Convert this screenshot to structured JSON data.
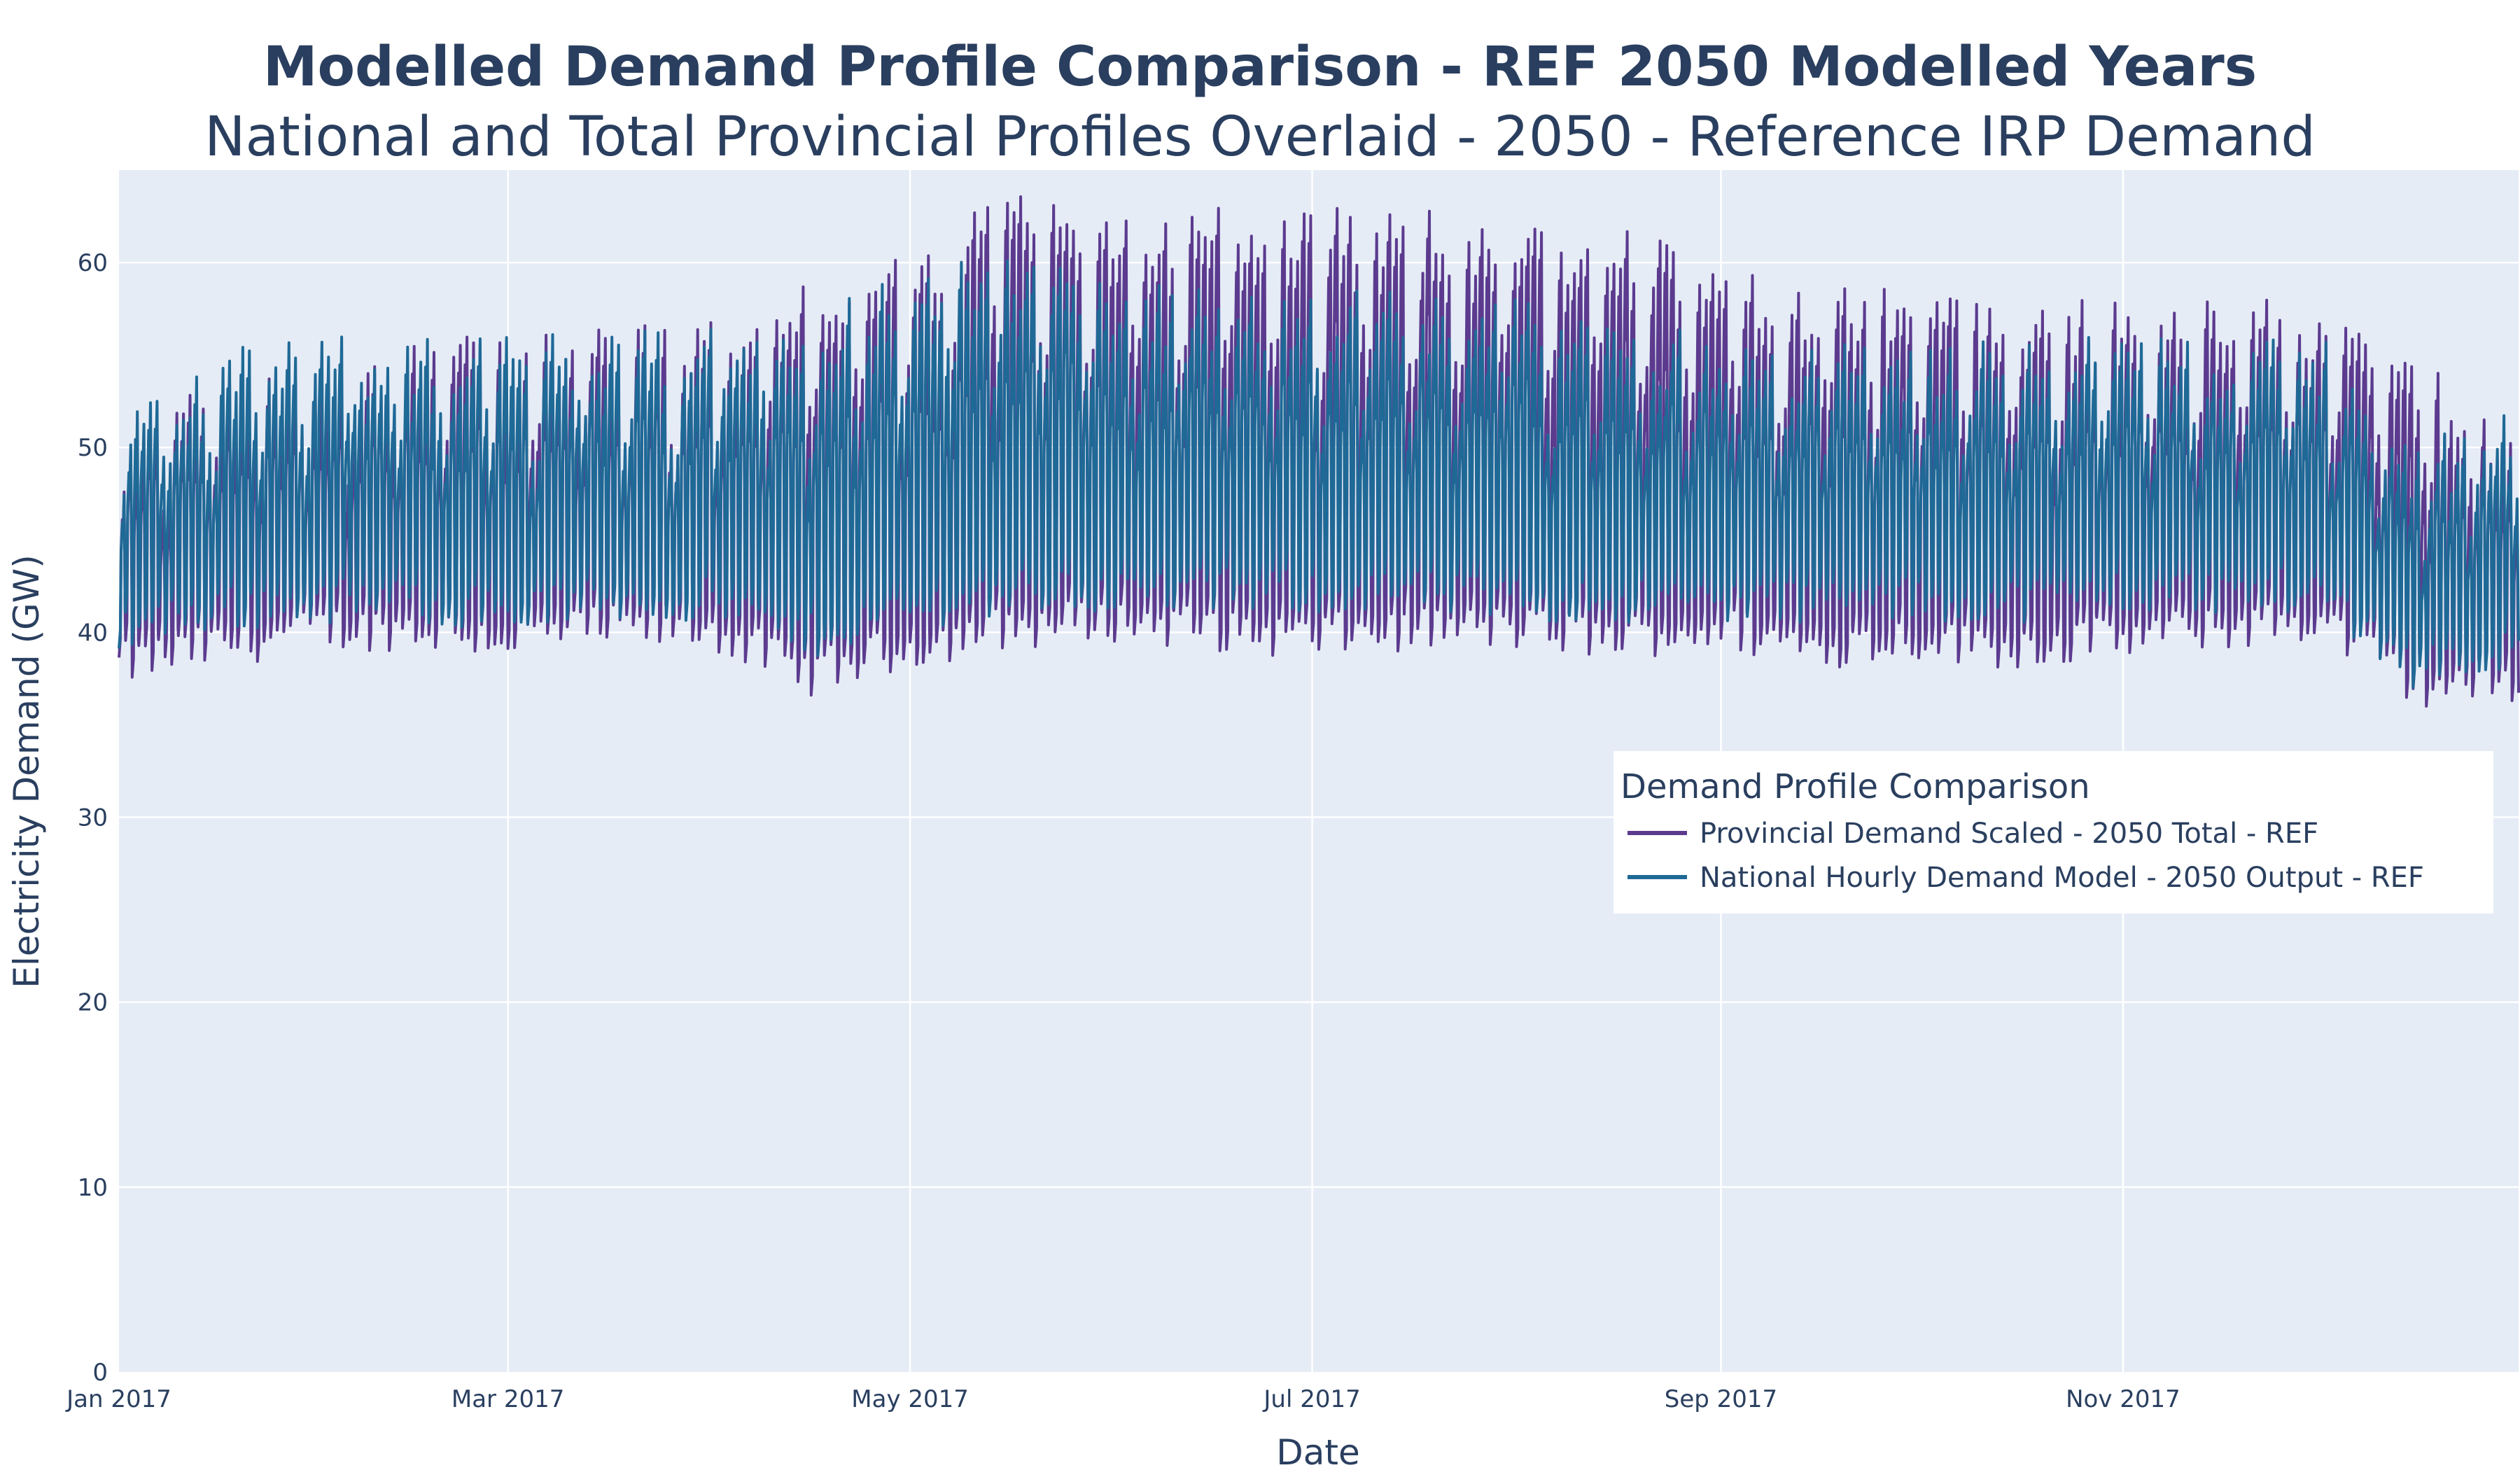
{
  "chart_data": {
    "type": "line",
    "title": "Modelled Demand Profile Comparison - REF 2050 Modelled Years",
    "subtitle": "National and Total Provincial Profiles Overlaid - 2050 - Reference IRP Demand",
    "xlabel": "Date",
    "ylabel": "Electricity Demand (GW)",
    "xlim": [
      "2017-01-01",
      "2017-12-31"
    ],
    "ylim": [
      0,
      65
    ],
    "x_ticks": [
      {
        "label": "Jan 2017",
        "value": "2017-01-01"
      },
      {
        "label": "Mar 2017",
        "value": "2017-03-01"
      },
      {
        "label": "May 2017",
        "value": "2017-05-01"
      },
      {
        "label": "Jul 2017",
        "value": "2017-07-01"
      },
      {
        "label": "Sep 2017",
        "value": "2017-09-01"
      },
      {
        "label": "Nov 2017",
        "value": "2017-11-01"
      }
    ],
    "y_ticks": [
      0,
      10,
      20,
      30,
      40,
      50,
      60
    ],
    "grid": true,
    "plot_bgcolor": "#e5ecf6",
    "legend": {
      "title": "Demand Profile Comparison",
      "position": "right-middle"
    },
    "series": [
      {
        "name": "Provincial Demand Scaled - 2050 Total - REF",
        "color": "#5c3b8f",
        "daily_min": {
          "x": [
            "2017-01-01",
            "2017-01-15",
            "2017-02-01",
            "2017-02-15",
            "2017-03-01",
            "2017-03-15",
            "2017-04-01",
            "2017-04-15",
            "2017-05-01",
            "2017-05-15",
            "2017-06-01",
            "2017-06-15",
            "2017-07-01",
            "2017-07-15",
            "2017-08-01",
            "2017-08-15",
            "2017-09-01",
            "2017-09-15",
            "2017-10-01",
            "2017-10-15",
            "2017-11-01",
            "2017-11-15",
            "2017-12-01",
            "2017-12-15",
            "2017-12-31"
          ],
          "y": [
            37,
            38,
            39,
            39,
            38.5,
            39,
            39,
            36.5,
            38,
            39,
            39.5,
            39,
            38.5,
            39,
            39,
            38.5,
            39,
            38,
            38.5,
            38,
            38.5,
            39,
            39.5,
            36,
            36
          ]
        },
        "daily_max": {
          "x": [
            "2017-01-01",
            "2017-01-15",
            "2017-02-01",
            "2017-02-15",
            "2017-03-01",
            "2017-03-15",
            "2017-04-01",
            "2017-04-15",
            "2017-05-01",
            "2017-05-15",
            "2017-06-01",
            "2017-06-15",
            "2017-07-01",
            "2017-07-15",
            "2017-08-01",
            "2017-08-15",
            "2017-09-01",
            "2017-09-15",
            "2017-10-01",
            "2017-10-15",
            "2017-11-01",
            "2017-11-15",
            "2017-12-01",
            "2017-12-15",
            "2017-12-31"
          ],
          "y": [
            52,
            54,
            55,
            56,
            56,
            56.5,
            57,
            59,
            60.5,
            64,
            63,
            63,
            63,
            63,
            62,
            62,
            60,
            58.5,
            59,
            58,
            58,
            58,
            58,
            55,
            51
          ]
        }
      },
      {
        "name": "National Hourly Demand Model - 2050 Output - REF",
        "color": "#1f6996",
        "daily_min": {
          "x": [
            "2017-01-01",
            "2017-01-15",
            "2017-02-01",
            "2017-02-15",
            "2017-03-01",
            "2017-03-15",
            "2017-04-01",
            "2017-04-15",
            "2017-05-01",
            "2017-05-15",
            "2017-06-01",
            "2017-06-15",
            "2017-07-01",
            "2017-07-15",
            "2017-08-01",
            "2017-08-15",
            "2017-09-01",
            "2017-09-15",
            "2017-10-01",
            "2017-10-15",
            "2017-11-01",
            "2017-11-15",
            "2017-12-01",
            "2017-12-15",
            "2017-12-31"
          ],
          "y": [
            39,
            40,
            40.5,
            40.5,
            40,
            40.5,
            40.5,
            38.5,
            40,
            41,
            41,
            41,
            41,
            41,
            40.5,
            40.5,
            40.5,
            40.5,
            40.5,
            40.5,
            41,
            41,
            41,
            37,
            38
          ]
        },
        "daily_max": {
          "x": [
            "2017-01-01",
            "2017-01-15",
            "2017-02-01",
            "2017-02-15",
            "2017-03-01",
            "2017-03-15",
            "2017-04-01",
            "2017-04-15",
            "2017-05-01",
            "2017-05-15",
            "2017-06-01",
            "2017-06-15",
            "2017-07-01",
            "2017-07-15",
            "2017-08-01",
            "2017-08-15",
            "2017-09-01",
            "2017-09-15",
            "2017-10-01",
            "2017-10-15",
            "2017-11-01",
            "2017-11-15",
            "2017-12-01",
            "2017-12-15",
            "2017-12-31"
          ],
          "y": [
            53,
            55.5,
            56,
            56,
            56,
            56.5,
            57,
            57,
            60,
            61,
            59,
            58.5,
            58.5,
            58.5,
            58,
            57,
            56,
            55.5,
            56,
            56,
            56,
            56,
            56,
            50,
            53
          ]
        }
      }
    ]
  }
}
